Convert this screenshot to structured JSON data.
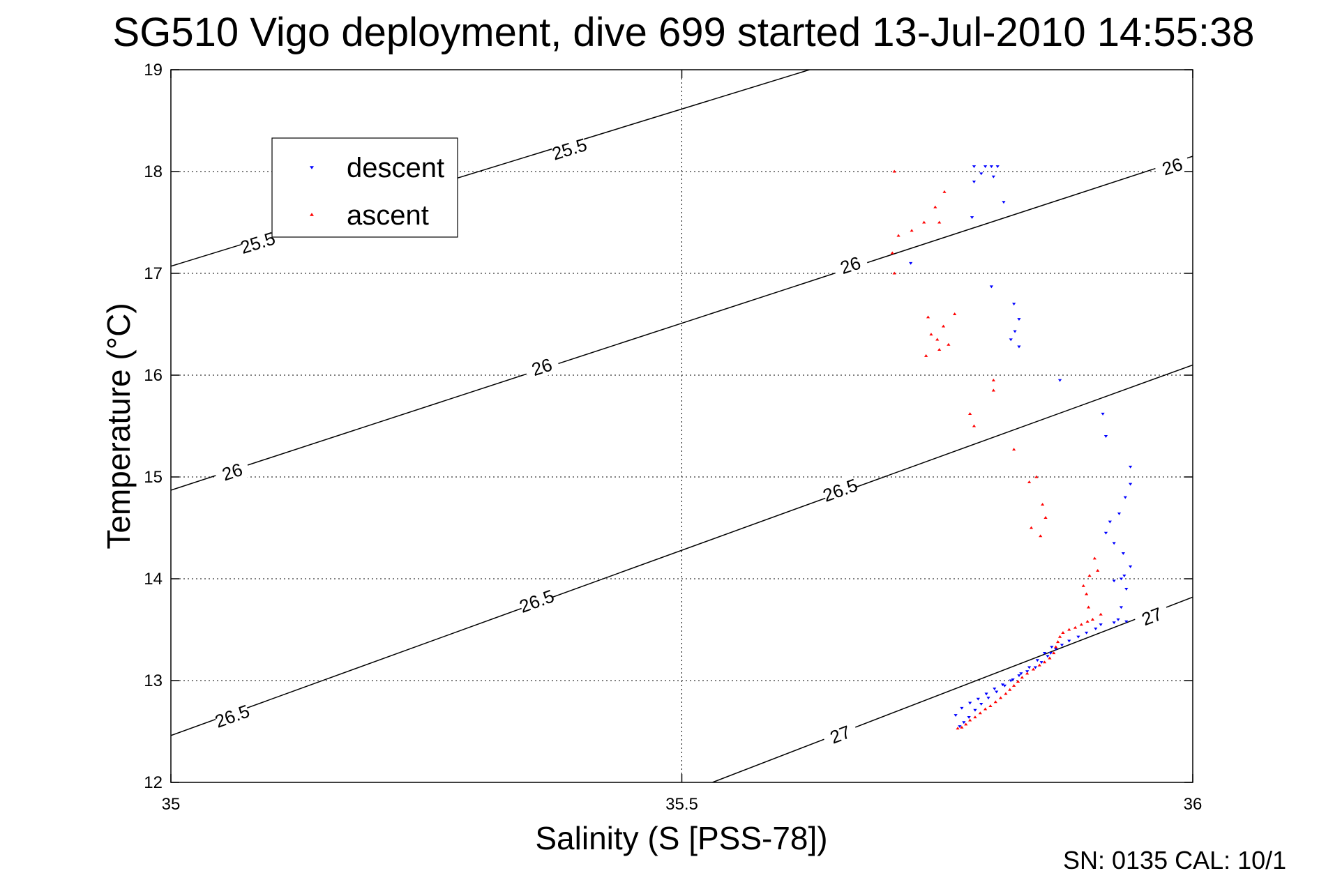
{
  "chart_data": {
    "type": "scatter",
    "title": "SG510 Vigo deployment, dive 699 started 13-Jul-2010 14:55:38",
    "xlabel": "Salinity (S [PSS-78])",
    "ylabel": "Temperature (°C)",
    "xlim": [
      35,
      36
    ],
    "ylim": [
      12,
      19
    ],
    "x_ticks": [
      "35",
      "35.5",
      "36"
    ],
    "y_ticks": [
      "12",
      "13",
      "14",
      "15",
      "16",
      "17",
      "18",
      "19"
    ],
    "grid": true,
    "legend_position": "top-left",
    "footer": "SN: 0135  CAL: 10/1",
    "contours": [
      {
        "label": "25.5",
        "points": [
          [
            35.0,
            17.07
          ],
          [
            35.625,
            19.0
          ]
        ],
        "labels_at": [
          [
            35.085,
            17.3
          ],
          [
            35.39,
            18.22
          ]
        ]
      },
      {
        "label": "26",
        "points": [
          [
            35.0,
            14.87
          ],
          [
            36.0,
            18.15
          ]
        ],
        "labels_at": [
          [
            35.06,
            15.05
          ],
          [
            35.363,
            16.08
          ],
          [
            35.665,
            17.08
          ],
          [
            35.98,
            18.05
          ]
        ]
      },
      {
        "label": "26.5",
        "points": [
          [
            35.0,
            12.46
          ],
          [
            36.0,
            16.1
          ]
        ],
        "labels_at": [
          [
            35.06,
            12.65
          ],
          [
            35.358,
            13.78
          ],
          [
            35.655,
            14.87
          ]
        ]
      },
      {
        "label": "27",
        "points": [
          [
            35.53,
            12.0
          ],
          [
            36.0,
            13.82
          ]
        ],
        "labels_at": [
          [
            35.655,
            12.47
          ],
          [
            35.96,
            13.63
          ]
        ]
      }
    ],
    "series": [
      {
        "name": "descent",
        "color": "#0000ff",
        "marker": "triangle-down",
        "x": [
          35.786,
          35.797,
          35.803,
          35.809,
          35.786,
          35.793,
          35.805,
          35.815,
          35.784,
          35.724,
          35.803,
          35.825,
          35.83,
          35.826,
          35.822,
          35.83,
          35.87,
          35.912,
          35.915,
          35.939,
          35.939,
          35.934,
          35.928,
          35.919,
          35.915,
          35.923,
          35.932,
          35.939,
          35.933,
          35.93,
          35.923,
          35.935,
          35.93,
          35.935,
          35.927,
          35.923,
          35.91,
          35.905,
          35.896,
          35.888,
          35.879,
          35.872,
          35.866,
          35.861,
          35.858,
          35.852,
          35.846,
          35.838,
          35.83,
          35.822,
          35.814,
          35.806,
          35.798,
          35.79,
          35.782,
          35.774,
          35.768,
          35.862,
          35.855,
          35.848,
          35.84,
          35.832,
          35.824,
          35.816,
          35.808,
          35.8,
          35.793,
          35.787,
          35.781,
          35.776,
          35.772
        ],
        "y": [
          18.05,
          18.05,
          18.05,
          18.05,
          17.9,
          17.98,
          17.95,
          17.7,
          17.55,
          17.1,
          16.87,
          16.7,
          16.55,
          16.43,
          16.35,
          16.28,
          15.95,
          15.62,
          15.4,
          15.1,
          14.93,
          14.8,
          14.64,
          14.56,
          14.45,
          14.35,
          14.25,
          14.12,
          14.03,
          14.0,
          13.98,
          13.9,
          13.72,
          13.58,
          13.6,
          13.57,
          13.55,
          13.51,
          13.47,
          13.43,
          13.39,
          13.35,
          13.31,
          13.27,
          13.24,
          13.18,
          13.13,
          13.09,
          13.05,
          13.0,
          12.96,
          12.92,
          12.87,
          12.82,
          12.78,
          12.73,
          12.66,
          13.33,
          13.27,
          13.2,
          13.13,
          13.07,
          13.01,
          12.95,
          12.89,
          12.83,
          12.77,
          12.71,
          12.64,
          12.59,
          12.55
        ]
      },
      {
        "name": "ascent",
        "color": "#ff0000",
        "marker": "triangle-up",
        "x": [
          35.708,
          35.712,
          35.725,
          35.737,
          35.748,
          35.757,
          35.752,
          35.706,
          35.708,
          35.741,
          35.756,
          35.767,
          35.744,
          35.75,
          35.752,
          35.739,
          35.761,
          35.805,
          35.805,
          35.782,
          35.786,
          35.825,
          35.84,
          35.847,
          35.853,
          35.842,
          35.856,
          35.851,
          35.904,
          35.899,
          35.907,
          35.893,
          35.896,
          35.898,
          35.91,
          35.902,
          35.897,
          35.891,
          35.885,
          35.879,
          35.873,
          35.87,
          35.868,
          35.866,
          35.864,
          35.86,
          35.855,
          35.85,
          35.844,
          35.838,
          35.833,
          35.829,
          35.825,
          35.821,
          35.817,
          35.812,
          35.807,
          35.802,
          35.797,
          35.792,
          35.787,
          35.782,
          35.778,
          35.774,
          35.77
        ],
        "y": [
          18.0,
          17.37,
          17.42,
          17.5,
          17.65,
          17.8,
          17.5,
          17.2,
          17.0,
          16.57,
          16.48,
          16.6,
          16.4,
          16.35,
          16.25,
          16.19,
          16.3,
          15.95,
          15.85,
          15.62,
          15.5,
          15.27,
          14.95,
          15.0,
          14.73,
          14.5,
          14.6,
          14.42,
          14.2,
          14.03,
          14.08,
          13.93,
          13.85,
          13.72,
          13.65,
          13.6,
          13.58,
          13.55,
          13.52,
          13.5,
          13.47,
          13.43,
          13.38,
          13.33,
          13.27,
          13.22,
          13.18,
          13.15,
          13.11,
          13.07,
          13.03,
          12.99,
          12.95,
          12.91,
          12.87,
          12.83,
          12.79,
          12.75,
          12.72,
          12.68,
          12.64,
          12.61,
          12.57,
          12.54,
          12.53
        ]
      }
    ]
  }
}
